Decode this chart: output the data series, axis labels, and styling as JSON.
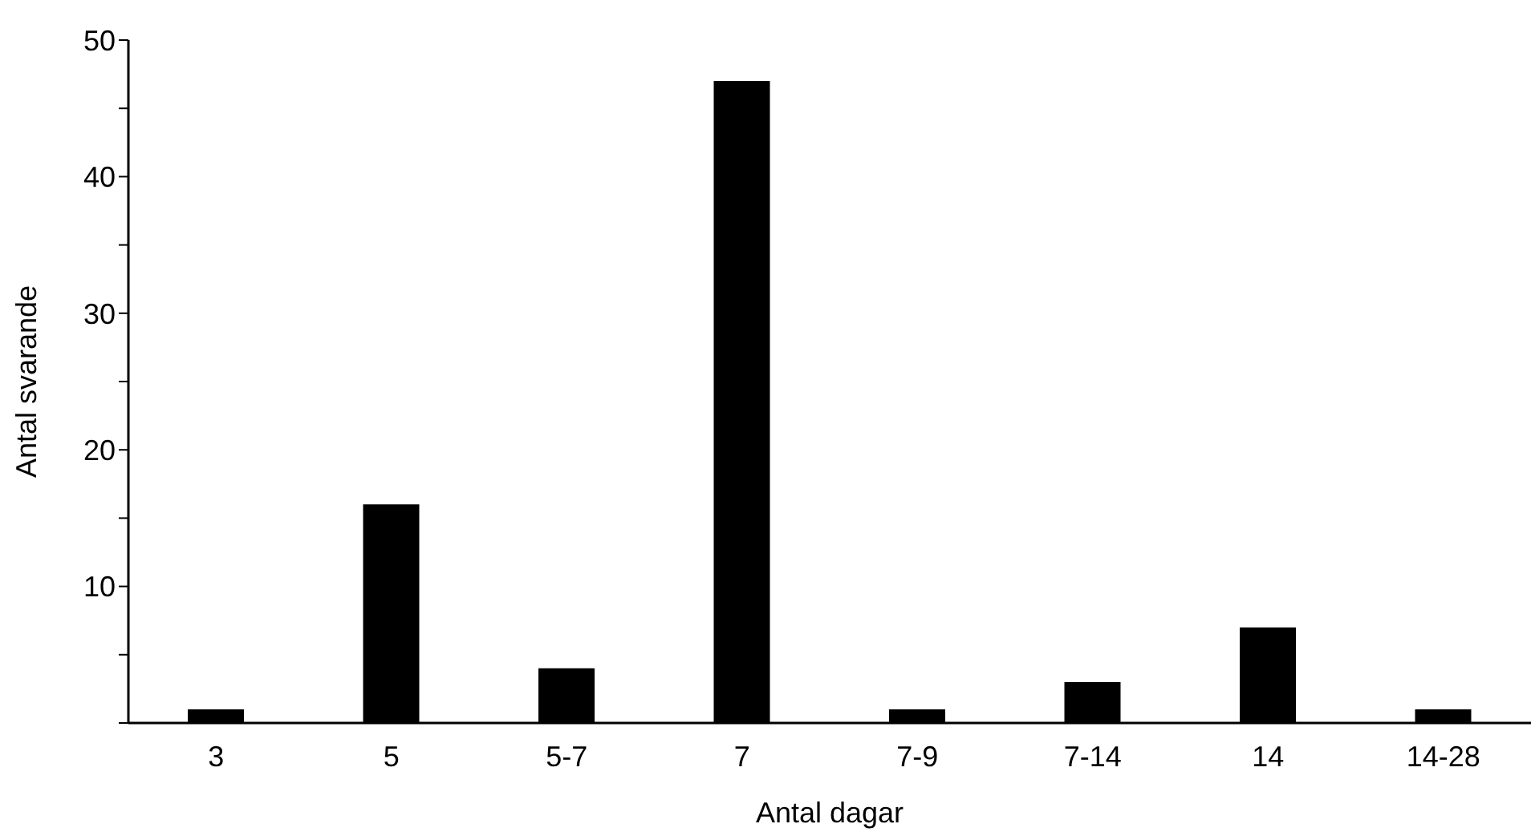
{
  "chart_data": {
    "type": "bar",
    "xlabel": "Antal dagar",
    "ylabel": "Antal svarande",
    "categories": [
      "3",
      "5",
      "5-7",
      "7",
      "7-9",
      "7-14",
      "14",
      "14-28"
    ],
    "values": [
      1,
      16,
      4,
      47,
      1,
      3,
      7,
      1
    ],
    "color": "#000000",
    "ylim": [
      0,
      50
    ],
    "yticks": [
      {
        "value": 0,
        "label": null
      },
      {
        "value": 5,
        "label": null
      },
      10,
      {
        "value": 15,
        "label": null
      },
      20,
      {
        "value": 25,
        "label": null
      },
      30,
      {
        "value": 35,
        "label": null
      },
      40,
      {
        "value": 45,
        "label": null
      },
      50
    ],
    "grid": false,
    "legend": false
  }
}
